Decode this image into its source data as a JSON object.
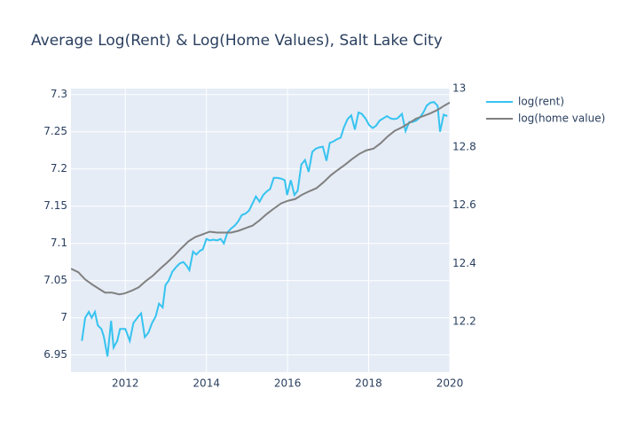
{
  "chart_data": {
    "type": "line",
    "title": "Average Log(Rent) & Log(Home Values), Salt Lake City",
    "xlim": [
      2010.66,
      2020.0
    ],
    "xticks": [
      2012,
      2014,
      2016,
      2018,
      2020
    ],
    "ylim": [
      6.927,
      7.308
    ],
    "yticks": [
      6.95,
      7,
      7.05,
      7.1,
      7.15,
      7.2,
      7.25,
      7.3
    ],
    "y2lim": [
      12.027,
      13.0
    ],
    "y2ticks": [
      12.2,
      12.4,
      12.6,
      12.8,
      13
    ],
    "grid": true,
    "legend": "right",
    "series": [
      {
        "name": "log(rent)",
        "color": "#36c3f0",
        "axis": "y",
        "x": [
          2010.93,
          2011.01,
          2011.1,
          2011.17,
          2011.25,
          2011.32,
          2011.41,
          2011.47,
          2011.56,
          2011.65,
          2011.71,
          2011.8,
          2011.87,
          2012.0,
          2012.11,
          2012.2,
          2012.31,
          2012.39,
          2012.48,
          2012.57,
          2012.66,
          2012.75,
          2012.83,
          2012.92,
          2012.99,
          2013.07,
          2013.16,
          2013.25,
          2013.34,
          2013.43,
          2013.51,
          2013.58,
          2013.67,
          2013.75,
          2013.84,
          2013.91,
          2014.0,
          2014.08,
          2014.17,
          2014.26,
          2014.35,
          2014.43,
          2014.52,
          2014.61,
          2014.7,
          2014.79,
          2014.87,
          2014.96,
          2015.05,
          2015.14,
          2015.22,
          2015.31,
          2015.4,
          2015.49,
          2015.57,
          2015.66,
          2015.75,
          2015.84,
          2015.93,
          2015.99,
          2016.08,
          2016.17,
          2016.25,
          2016.34,
          2016.43,
          2016.52,
          2016.61,
          2016.69,
          2016.78,
          2016.87,
          2016.96,
          2017.04,
          2017.13,
          2017.22,
          2017.31,
          2017.39,
          2017.48,
          2017.57,
          2017.66,
          2017.75,
          2017.83,
          2017.92,
          2018.01,
          2018.1,
          2018.18,
          2018.27,
          2018.36,
          2018.45,
          2018.54,
          2018.62,
          2018.71,
          2018.82,
          2018.91,
          2019.0,
          2019.08,
          2019.17,
          2019.26,
          2019.35,
          2019.43,
          2019.52,
          2019.61,
          2019.7,
          2019.76,
          2019.85,
          2019.94
        ],
        "values": [
          6.969,
          7.0,
          7.008,
          7.0,
          7.008,
          6.99,
          6.985,
          6.975,
          6.948,
          6.996,
          6.96,
          6.969,
          6.985,
          6.985,
          6.969,
          6.993,
          7.001,
          7.006,
          6.974,
          6.98,
          6.993,
          7.002,
          7.019,
          7.014,
          7.044,
          7.05,
          7.062,
          7.068,
          7.073,
          7.075,
          7.07,
          7.064,
          7.089,
          7.085,
          7.09,
          7.092,
          7.106,
          7.104,
          7.105,
          7.104,
          7.106,
          7.1,
          7.115,
          7.12,
          7.124,
          7.13,
          7.138,
          7.14,
          7.144,
          7.154,
          7.163,
          7.156,
          7.165,
          7.17,
          7.173,
          7.188,
          7.188,
          7.187,
          7.185,
          7.165,
          7.185,
          7.165,
          7.171,
          7.206,
          7.212,
          7.196,
          7.223,
          7.227,
          7.229,
          7.23,
          7.211,
          7.235,
          7.237,
          7.24,
          7.242,
          7.256,
          7.267,
          7.272,
          7.253,
          7.276,
          7.274,
          7.268,
          7.259,
          7.255,
          7.258,
          7.265,
          7.268,
          7.271,
          7.268,
          7.267,
          7.268,
          7.274,
          7.251,
          7.263,
          7.263,
          7.265,
          7.269,
          7.276,
          7.285,
          7.289,
          7.29,
          7.285,
          7.25,
          7.273,
          7.271
        ]
      },
      {
        "name": "log(home value)",
        "color": "#808080",
        "axis": "y2",
        "x": [
          2010.66,
          2010.84,
          2011.01,
          2011.19,
          2011.36,
          2011.5,
          2011.67,
          2011.85,
          2011.98,
          2012.15,
          2012.33,
          2012.5,
          2012.68,
          2012.86,
          2013.03,
          2013.21,
          2013.38,
          2013.56,
          2013.73,
          2013.91,
          2014.08,
          2014.26,
          2014.43,
          2014.61,
          2014.79,
          2014.96,
          2015.14,
          2015.31,
          2015.49,
          2015.66,
          2015.84,
          2016.01,
          2016.19,
          2016.36,
          2016.54,
          2016.71,
          2016.89,
          2017.07,
          2017.24,
          2017.42,
          2017.59,
          2017.77,
          2017.94,
          2018.12,
          2018.29,
          2018.47,
          2018.64,
          2018.82,
          2019.0,
          2019.17,
          2019.35,
          2019.52,
          2019.7,
          2019.87,
          2020.0
        ],
        "values": [
          12.382,
          12.37,
          12.345,
          12.327,
          12.312,
          12.3,
          12.3,
          12.294,
          12.297,
          12.306,
          12.318,
          12.339,
          12.358,
          12.382,
          12.403,
          12.427,
          12.452,
          12.476,
          12.491,
          12.5,
          12.509,
          12.506,
          12.506,
          12.506,
          12.512,
          12.521,
          12.53,
          12.548,
          12.57,
          12.588,
          12.606,
          12.615,
          12.621,
          12.636,
          12.648,
          12.658,
          12.679,
          12.703,
          12.721,
          12.739,
          12.758,
          12.776,
          12.788,
          12.794,
          12.812,
          12.836,
          12.855,
          12.867,
          12.882,
          12.897,
          12.906,
          12.915,
          12.927,
          12.942,
          12.952
        ]
      }
    ]
  }
}
